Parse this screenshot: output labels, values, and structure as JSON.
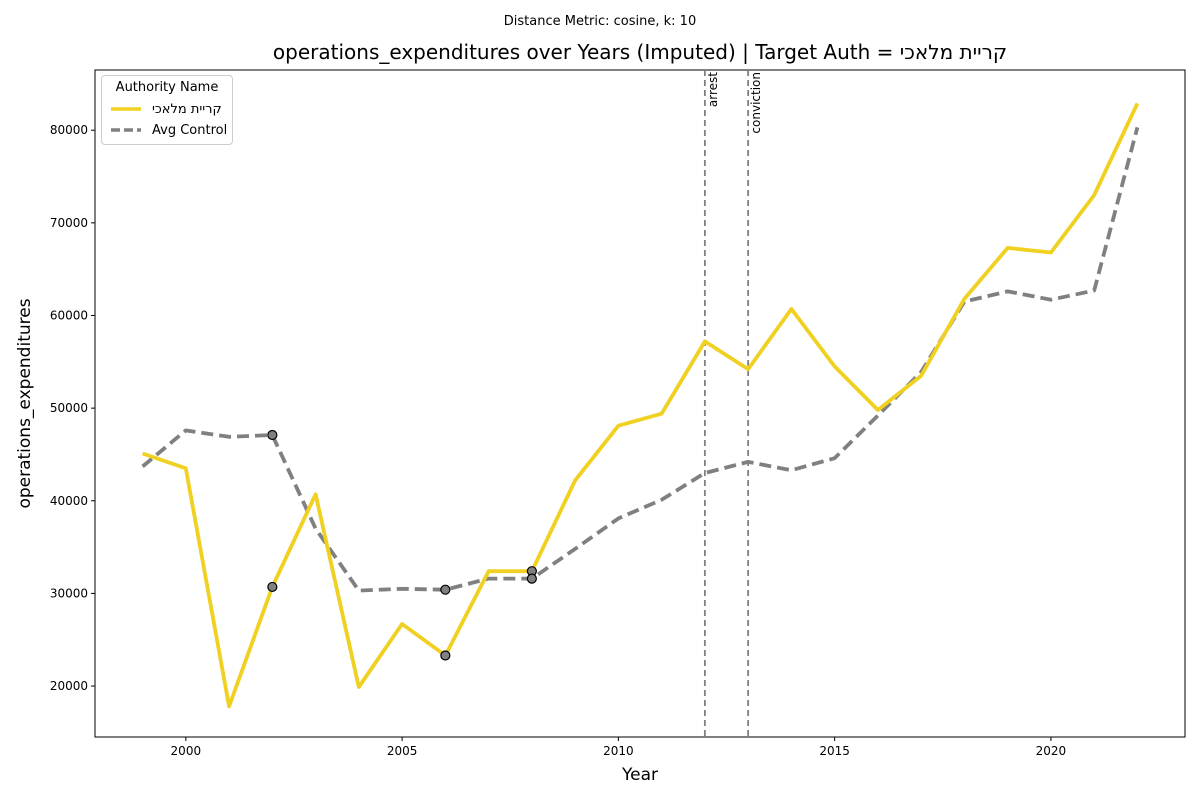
{
  "suptitle": "Distance Metric: cosine, k: 10",
  "chart_data": {
    "type": "line",
    "title": "operations_expenditures over Years (Imputed) | Target Auth = קריית מלאכי",
    "xlabel": "Year",
    "ylabel": "operations_expenditures",
    "xlim": [
      1997.9,
      2023.1
    ],
    "ylim": [
      14500,
      86500
    ],
    "xticks": [
      2000,
      2005,
      2010,
      2015,
      2020
    ],
    "yticks": [
      20000,
      30000,
      40000,
      50000,
      60000,
      70000,
      80000
    ],
    "grid": false,
    "legend": {
      "title": "Authority Name",
      "placement": "top-left"
    },
    "x": [
      1999,
      2000,
      2001,
      2002,
      2003,
      2004,
      2005,
      2006,
      2007,
      2008,
      2009,
      2010,
      2011,
      2012,
      2013,
      2014,
      2015,
      2016,
      2017,
      2018,
      2019,
      2020,
      2021,
      2022
    ],
    "series": [
      {
        "name": "קריית מלאכי",
        "color": "#f0d020",
        "style": "solid",
        "values": [
          45100,
          43500,
          17800,
          30700,
          40700,
          19900,
          26700,
          23300,
          32400,
          32400,
          42200,
          48100,
          49400,
          57200,
          54200,
          60700,
          54500,
          49800,
          53500,
          61800,
          67300,
          66800,
          73000,
          82900
        ],
        "imputed_years": [
          2002,
          2006,
          2008
        ]
      },
      {
        "name": "Avg Control",
        "color": "#808080",
        "style": "dashed",
        "values": [
          43700,
          47600,
          46900,
          47100,
          37000,
          30300,
          30500,
          30400,
          31600,
          31600,
          34800,
          38100,
          40100,
          43000,
          44200,
          43300,
          44600,
          49200,
          53900,
          61500,
          62600,
          61700,
          62700,
          80300
        ],
        "imputed_years": [
          2002,
          2006,
          2008
        ]
      }
    ],
    "events": [
      {
        "x": 2012,
        "label": "arrest"
      },
      {
        "x": 2013,
        "label": "conviction"
      }
    ]
  }
}
